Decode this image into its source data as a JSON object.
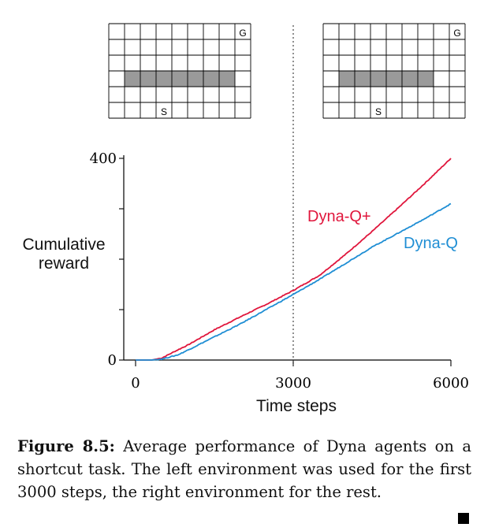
{
  "grids": {
    "left": {
      "goal_label": "G",
      "start_label": "S",
      "cols": 9,
      "rows": 6,
      "wall_row": 3,
      "wall_from_col": 1,
      "wall_to_col": 8,
      "start_col": 3,
      "goal_col": 8
    },
    "right": {
      "goal_label": "G",
      "start_label": "S",
      "cols": 9,
      "rows": 6,
      "wall_row": 3,
      "wall_from_col": 1,
      "wall_to_col": 7,
      "start_col": 3,
      "goal_col": 8
    }
  },
  "chart_data": {
    "type": "line",
    "xlabel": "Time steps",
    "ylabel": "Cumulative reward",
    "xlim": [
      0,
      6000
    ],
    "ylim": [
      0,
      400
    ],
    "x_ticks": [
      "0",
      "3000",
      "6000"
    ],
    "y_ticks": [
      "0",
      "400"
    ],
    "switch_at": 3000,
    "series": [
      {
        "name": "Dyna-Q+",
        "color": "#e0163c",
        "x": [
          0,
          300,
          500,
          800,
          1000,
          1500,
          2000,
          2500,
          3000,
          3500,
          4000,
          4500,
          5000,
          5500,
          6000
        ],
        "y": [
          0,
          0,
          4,
          20,
          30,
          60,
          86,
          111,
          138,
          168,
          210,
          255,
          302,
          350,
          400
        ]
      },
      {
        "name": "Dyna-Q",
        "color": "#1f8ed4",
        "x": [
          0,
          300,
          500,
          800,
          1000,
          1500,
          2000,
          2500,
          3000,
          3500,
          4000,
          4500,
          5000,
          5500,
          6000
        ],
        "y": [
          0,
          0,
          2,
          10,
          20,
          46,
          72,
          101,
          130,
          160,
          192,
          224,
          252,
          280,
          310
        ]
      }
    ]
  },
  "caption": {
    "label": "Figure 8.5:",
    "text": "Average performance of Dyna agents on a shortcut task. The left environment was used for the first 3000 steps, the right environment for the rest."
  }
}
